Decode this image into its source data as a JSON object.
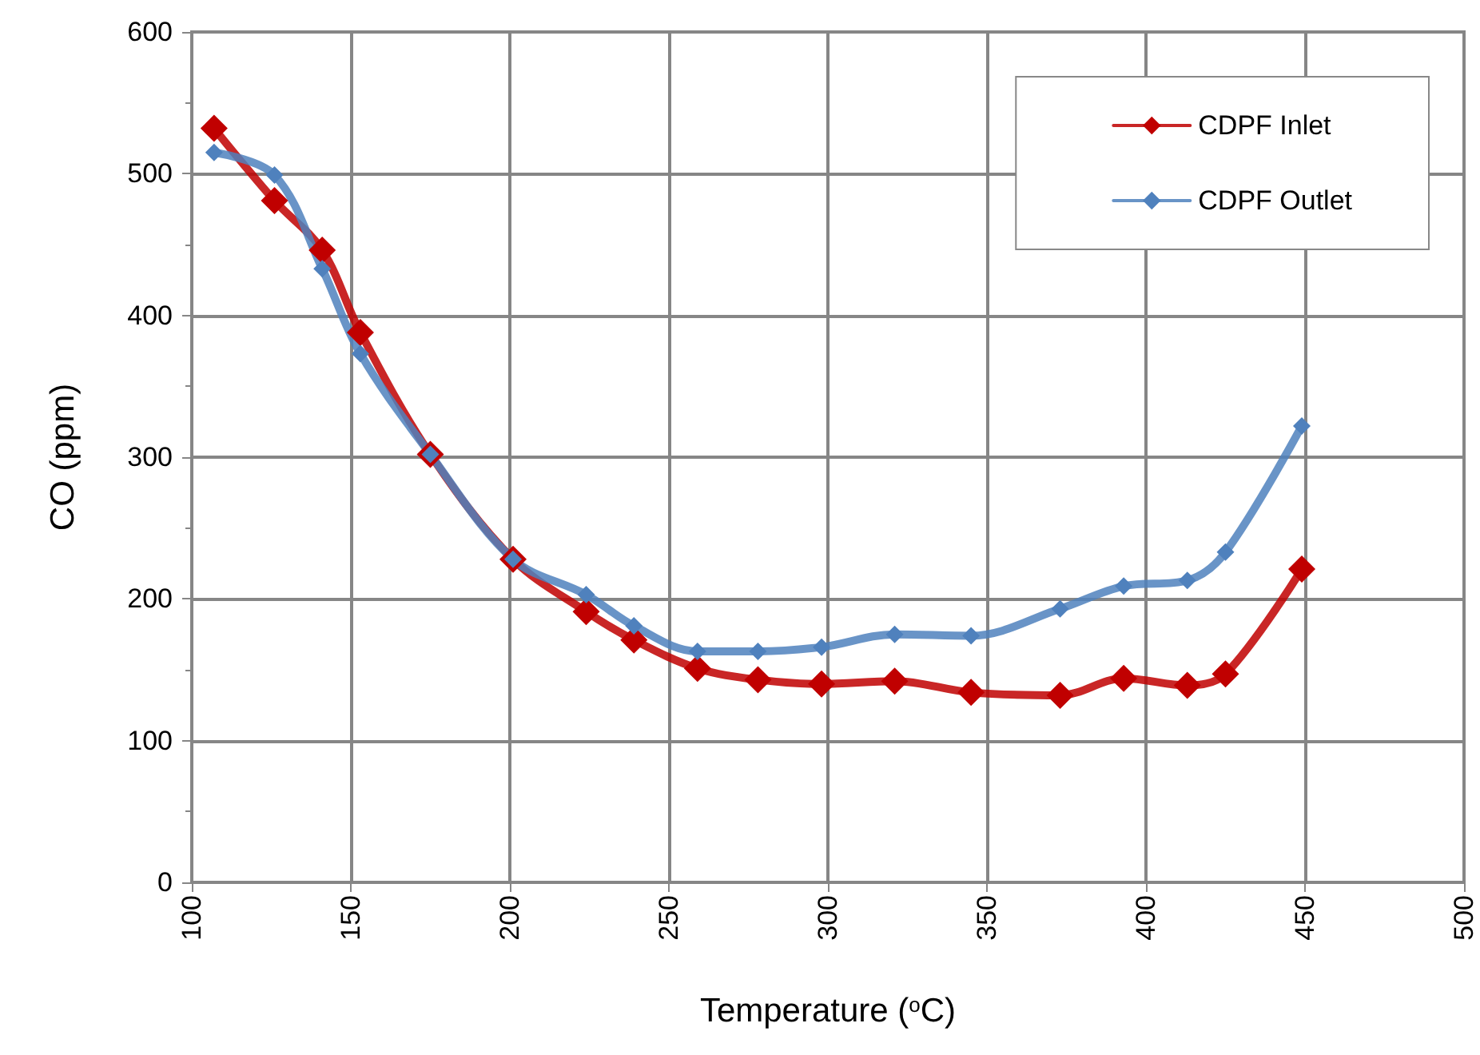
{
  "chart_data": {
    "type": "line",
    "xlabel": "Temperature ($^{o}$C)",
    "ylabel": "CO (ppm)",
    "x": [
      107,
      126,
      141,
      153,
      175,
      201,
      224,
      239,
      259,
      278,
      298,
      321,
      345,
      373,
      393,
      413,
      425,
      449
    ],
    "series": [
      {
        "name": "CDPF Inlet",
        "color": "#c00000",
        "values": [
          532,
          481,
          446,
          388,
          302,
          228,
          191,
          171,
          151,
          143,
          140,
          142,
          134,
          132,
          144,
          139,
          147,
          221
        ]
      },
      {
        "name": "CDPF Outlet",
        "color": "#4f81bd",
        "values": [
          515,
          499,
          433,
          373,
          302,
          228,
          203,
          181,
          163,
          163,
          166,
          175,
          174,
          193,
          209,
          213,
          233,
          322
        ]
      }
    ],
    "xlim": [
      100,
      500
    ],
    "xticks": [
      100,
      150,
      200,
      250,
      300,
      350,
      400,
      450,
      500
    ],
    "ylim": [
      0,
      600
    ],
    "yticks": [
      0,
      100,
      200,
      300,
      400,
      500,
      600
    ],
    "grid": true,
    "legend": "top right",
    "marker": "diamond",
    "line_style": "solid"
  }
}
